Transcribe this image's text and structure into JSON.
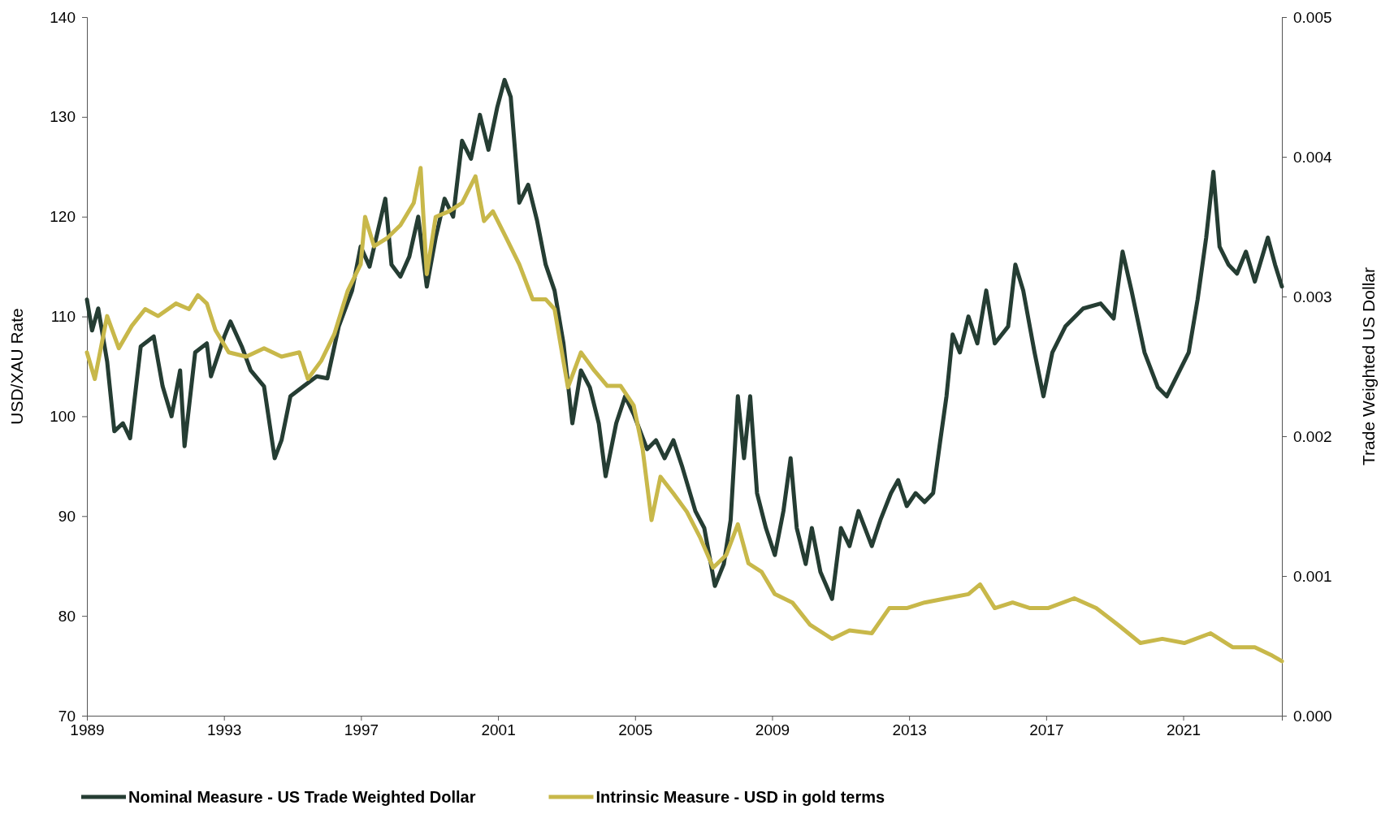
{
  "chart_data": {
    "type": "line",
    "ylabel": "USD/XAU Rate",
    "y2label": "Trade Weighted US Dollar",
    "xlim": [
      1989,
      2023.88
    ],
    "xticks": [
      1989,
      1993,
      1997,
      2001,
      2005,
      2009,
      2013,
      2017,
      2021
    ],
    "ylim": [
      70,
      140
    ],
    "yticks": [
      70,
      80,
      90,
      100,
      110,
      120,
      130,
      140
    ],
    "y2lim": [
      0,
      0.005
    ],
    "y2ticks": [
      {
        "value": 0,
        "label": "0.000"
      },
      {
        "value": 0.001,
        "label": "0.001"
      },
      {
        "value": 0.002,
        "label": "0.002"
      },
      {
        "value": 0.003,
        "label": "0.003"
      },
      {
        "value": 0.004,
        "label": "0.004"
      },
      {
        "value": 0.005,
        "label": "0.005"
      }
    ],
    "grid": false,
    "legend": "bottom",
    "series": [
      {
        "name": "Nominal Measure - US Trade Weighted Dollar",
        "color": "#253d33",
        "x": [
          1989.0,
          1989.15,
          1989.33,
          1989.59,
          1989.8,
          1990.05,
          1990.26,
          1990.57,
          1990.95,
          1991.21,
          1991.47,
          1991.72,
          1991.85,
          1992.16,
          1992.5,
          1992.62,
          1993.01,
          1993.19,
          1993.52,
          1993.78,
          1994.17,
          1994.48,
          1994.68,
          1994.94,
          1995.32,
          1995.71,
          1996.02,
          1996.35,
          1996.74,
          1996.99,
          1997.25,
          1997.71,
          1997.89,
          1998.15,
          1998.41,
          1998.67,
          1998.92,
          1999.18,
          1999.44,
          1999.69,
          1999.95,
          2000.21,
          2000.47,
          2000.72,
          2000.98,
          2001.19,
          2001.37,
          2001.62,
          2001.88,
          2002.14,
          2002.39,
          2002.65,
          2002.91,
          2003.17,
          2003.42,
          2003.68,
          2003.94,
          2004.14,
          2004.45,
          2004.71,
          2004.96,
          2005.35,
          2005.61,
          2005.86,
          2006.12,
          2006.38,
          2006.76,
          2007.02,
          2007.33,
          2007.59,
          2007.79,
          2008.0,
          2008.18,
          2008.36,
          2008.56,
          2008.82,
          2009.08,
          2009.33,
          2009.54,
          2009.72,
          2009.98,
          2010.16,
          2010.41,
          2010.75,
          2011.01,
          2011.26,
          2011.52,
          2011.91,
          2012.16,
          2012.47,
          2012.68,
          2012.93,
          2013.19,
          2013.45,
          2013.7,
          2013.91,
          2014.09,
          2014.27,
          2014.48,
          2014.73,
          2014.99,
          2015.25,
          2015.5,
          2015.89,
          2016.1,
          2016.33,
          2016.66,
          2016.92,
          2017.18,
          2017.56,
          2018.08,
          2018.59,
          2018.97,
          2019.23,
          2019.49,
          2019.87,
          2020.26,
          2020.52,
          2020.9,
          2021.16,
          2021.42,
          2021.67,
          2021.88,
          2022.06,
          2022.32,
          2022.57,
          2022.83,
          2023.09,
          2023.47,
          2023.68,
          2023.88
        ],
        "values": [
          111.7,
          108.6,
          110.8,
          105.5,
          98.5,
          99.3,
          97.8,
          107,
          108,
          103,
          100,
          104.6,
          97,
          106.4,
          107.3,
          104,
          108,
          109.5,
          107,
          104.6,
          103,
          95.8,
          97.6,
          102,
          103,
          104,
          103.8,
          109,
          112.6,
          117,
          115,
          121.8,
          115.2,
          114,
          116,
          120,
          113,
          117.9,
          121.8,
          120,
          127.6,
          125.8,
          130.2,
          126.7,
          131,
          133.7,
          132,
          121.4,
          123.2,
          119.6,
          115.2,
          112.6,
          107.3,
          99.3,
          104.6,
          102.9,
          99.3,
          94,
          99.3,
          102,
          100.2,
          96.7,
          97.6,
          95.8,
          97.6,
          94.9,
          90.5,
          88.8,
          83,
          85.2,
          89.6,
          102,
          95.8,
          102,
          92.3,
          88.8,
          86.1,
          90.5,
          95.8,
          88.8,
          85.2,
          88.8,
          84.4,
          81.7,
          88.8,
          87,
          90.5,
          87,
          89.6,
          92.3,
          93.6,
          91,
          92.3,
          91.4,
          92.3,
          97.6,
          102,
          108.2,
          106.4,
          110,
          107.3,
          112.6,
          107.3,
          109,
          115.2,
          112.6,
          106.4,
          102,
          106.4,
          109,
          110.8,
          111.3,
          109.8,
          116.5,
          112.6,
          106.4,
          102.9,
          102,
          104.6,
          106.4,
          111.7,
          117.9,
          124.5,
          117,
          115.2,
          114.3,
          116.5,
          113.5,
          117.9,
          115.2,
          113
        ]
      },
      {
        "name": "Intrinsic Measure - USD in gold terms",
        "color": "#c8b84a",
        "axis": "y2",
        "x": [
          1989.0,
          1989.23,
          1989.59,
          1989.93,
          1990.31,
          1990.7,
          1991.08,
          1991.6,
          1991.98,
          1992.24,
          1992.5,
          1992.75,
          1993.14,
          1993.65,
          1994.17,
          1994.68,
          1995.2,
          1995.45,
          1995.84,
          1996.22,
          1996.61,
          1996.99,
          1997.12,
          1997.38,
          1997.77,
          1998.15,
          1998.54,
          1998.74,
          1998.92,
          1999.18,
          1999.57,
          1999.95,
          2000.34,
          2000.59,
          2000.85,
          2001.24,
          2001.62,
          2002.01,
          2002.39,
          2002.65,
          2003.04,
          2003.42,
          2003.81,
          2004.19,
          2004.58,
          2004.96,
          2005.22,
          2005.48,
          2005.74,
          2006.12,
          2006.51,
          2006.89,
          2007.28,
          2007.66,
          2008.0,
          2008.31,
          2008.69,
          2009.08,
          2009.59,
          2010.11,
          2010.75,
          2011.26,
          2011.91,
          2012.42,
          2012.93,
          2013.45,
          2014.09,
          2014.73,
          2015.07,
          2015.5,
          2016.02,
          2016.53,
          2017.05,
          2017.82,
          2018.46,
          2019.1,
          2019.75,
          2020.39,
          2021.03,
          2021.8,
          2022.44,
          2023.09,
          2023.6,
          2023.88
        ],
        "values": [
          0.0026,
          0.00241,
          0.00286,
          0.00263,
          0.00279,
          0.00291,
          0.00286,
          0.00295,
          0.00291,
          0.00301,
          0.00295,
          0.00276,
          0.0026,
          0.00257,
          0.00263,
          0.00257,
          0.0026,
          0.00241,
          0.00254,
          0.00273,
          0.00304,
          0.00323,
          0.00357,
          0.00336,
          0.00342,
          0.00351,
          0.00367,
          0.00392,
          0.00316,
          0.00357,
          0.00361,
          0.00367,
          0.00386,
          0.00354,
          0.00361,
          0.00342,
          0.00323,
          0.00298,
          0.00298,
          0.00291,
          0.00235,
          0.0026,
          0.00247,
          0.00236,
          0.00236,
          0.00222,
          0.00191,
          0.0014,
          0.00171,
          0.00159,
          0.00146,
          0.00128,
          0.00106,
          0.00115,
          0.00137,
          0.00109,
          0.00103,
          0.00087,
          0.00081,
          0.00065,
          0.00055,
          0.00061,
          0.00059,
          0.00077,
          0.00077,
          0.00081,
          0.00084,
          0.00087,
          0.00094,
          0.00077,
          0.00081,
          0.00077,
          0.00077,
          0.00084,
          0.00077,
          0.00065,
          0.00052,
          0.00055,
          0.00052,
          0.00059,
          0.00049,
          0.00049,
          0.00043,
          0.00039
        ]
      }
    ]
  }
}
